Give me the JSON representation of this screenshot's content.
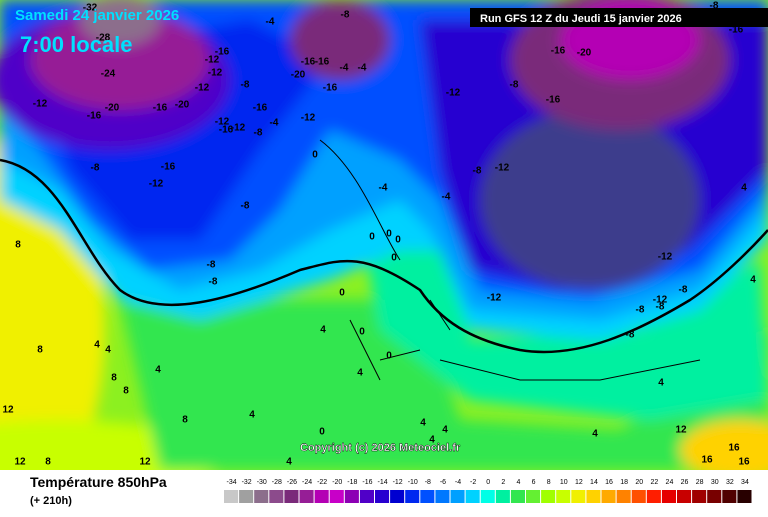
{
  "header": {
    "date": "Samedi 24 janvier 2026",
    "time": "7:00 locale",
    "run": "Run GFS 12 Z du Jeudi 15 janvier 2026"
  },
  "copyright": "Copyright (c) 2026 Meteociel.fr",
  "legend": {
    "title": "Température 850hPa",
    "lead": "(+ 210h)",
    "ticks": [
      -34,
      -32,
      -30,
      -28,
      -26,
      -24,
      -22,
      -20,
      -18,
      -16,
      -14,
      -12,
      -10,
      -8,
      -6,
      -4,
      -2,
      0,
      2,
      4,
      6,
      8,
      10,
      12,
      14,
      16,
      18,
      20,
      22,
      24,
      26,
      28,
      30,
      32,
      34
    ],
    "colors": [
      "#c8c8c8",
      "#a0a0a0",
      "#8c6e8c",
      "#8c4b8c",
      "#7a2a7a",
      "#961e96",
      "#b400b4",
      "#c800c8",
      "#8c00b4",
      "#5000c8",
      "#2800d0",
      "#0000d0",
      "#0028f0",
      "#0050ff",
      "#0078ff",
      "#00a0ff",
      "#00d2ff",
      "#00ffe6",
      "#00f0a0",
      "#32e650",
      "#64f032",
      "#a0ff00",
      "#c8ff00",
      "#f0f000",
      "#ffd200",
      "#ffaa00",
      "#ff8200",
      "#ff5000",
      "#ff1e00",
      "#e60000",
      "#c80000",
      "#a00000",
      "#780000",
      "#500000",
      "#280000"
    ]
  },
  "map_labels": [
    "-32",
    "-28",
    "-24",
    "-20",
    "-16",
    "-12",
    "-16",
    "-20",
    "-12",
    "-16",
    "-12",
    "-12",
    "-4",
    "-8",
    "-16",
    "-20",
    "-16",
    "-16",
    "-4",
    "-4",
    "-16",
    "-8",
    "-12",
    "-4",
    "-8",
    "-12",
    "-16",
    "-12",
    "-8",
    "-16",
    "-12",
    "-8",
    "0",
    "-4",
    "-4",
    "-8",
    "-12",
    "-12",
    "-8",
    "-16",
    "-20",
    "-16",
    "-8",
    "-16",
    "4",
    "4",
    "-8",
    "-8",
    "0",
    "0",
    "0",
    "0",
    "0",
    "-12",
    "-12",
    "-8",
    "-12",
    "-8",
    "-8",
    "-8",
    "4",
    "0",
    "0",
    "4",
    "8",
    "4",
    "4",
    "8",
    "4",
    "8",
    "4",
    "8",
    "12",
    "12",
    "8",
    "12",
    "4",
    "0",
    "4",
    "4",
    "4",
    "12",
    "16",
    "16",
    "16",
    "4",
    "4",
    "8"
  ]
}
